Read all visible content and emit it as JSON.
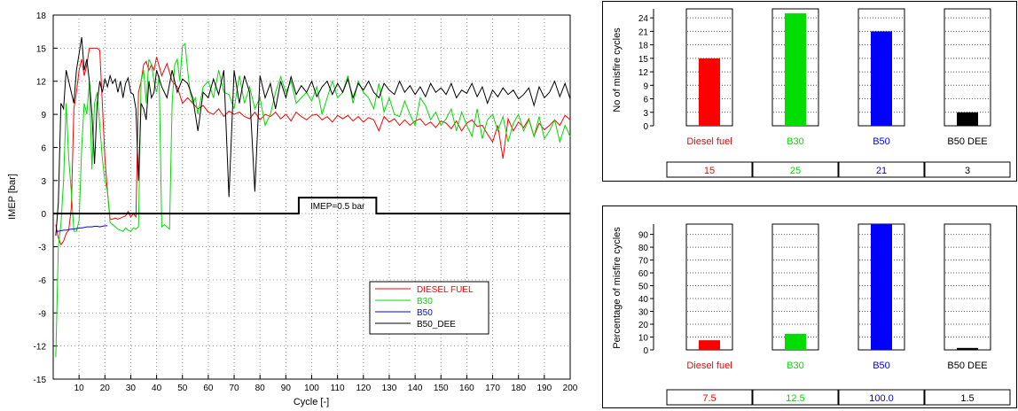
{
  "chart_data": [
    {
      "type": "line",
      "ylabel": "IMEP [bar]",
      "xlabel": "Cycle [-]",
      "xlim": [
        0,
        200
      ],
      "ylim": [
        -15,
        18
      ],
      "xticks": [
        10,
        20,
        30,
        40,
        50,
        60,
        70,
        80,
        90,
        100,
        110,
        120,
        130,
        140,
        150,
        160,
        170,
        180,
        190,
        200
      ],
      "yticks": [
        18,
        15,
        12,
        9,
        6,
        3,
        0,
        -3,
        -6,
        -9,
        -12,
        -15
      ],
      "grid": true,
      "legend_position": "bottom-right",
      "annotation": {
        "text": "IMEP=0.5 bar",
        "x_start": 95,
        "x_end": 125,
        "y": 0
      },
      "series": [
        {
          "name": "DIESEL FUEL",
          "color": "#ff0000",
          "x": [
            1,
            2,
            3,
            4,
            5,
            6,
            7,
            8,
            9,
            10,
            11,
            12,
            13,
            14,
            15,
            16,
            17,
            18,
            19,
            20,
            21,
            22,
            23,
            24,
            25,
            26,
            27,
            28,
            29,
            30,
            31,
            32,
            33,
            34,
            35,
            36,
            37,
            38,
            39,
            40,
            42,
            44,
            46,
            48,
            50,
            52,
            54,
            56,
            58,
            60,
            62,
            64,
            66,
            68,
            70,
            72,
            74,
            76,
            78,
            80,
            82,
            84,
            86,
            88,
            90,
            92,
            94,
            96,
            98,
            100,
            102,
            104,
            106,
            108,
            110,
            112,
            114,
            116,
            118,
            120,
            122,
            124,
            126,
            128,
            130,
            132,
            134,
            136,
            138,
            140,
            142,
            144,
            146,
            148,
            150,
            152,
            154,
            156,
            158,
            160,
            162,
            164,
            166,
            168,
            170,
            172,
            174,
            176,
            178,
            180,
            182,
            184,
            186,
            188,
            190,
            192,
            194,
            196,
            198,
            200
          ],
          "y": [
            -1,
            -2.2,
            -2.8,
            -2.5,
            -1.8,
            -1.5,
            0.5,
            9.5,
            11,
            13,
            14,
            12.5,
            13.5,
            15,
            15,
            15,
            15,
            14.8,
            10,
            5,
            2,
            -0.5,
            -0.5,
            -0.4,
            -0.5,
            -0.4,
            -0.3,
            -0.2,
            0.2,
            -0.3,
            0,
            -0.3,
            11,
            12,
            13.5,
            13.8,
            13,
            13.5,
            13,
            14.2,
            12.5,
            13.6,
            12,
            11.5,
            10,
            10.5,
            10,
            9.5,
            9.8,
            9.2,
            9,
            9.5,
            8.8,
            9.3,
            9,
            9.2,
            8.8,
            8.6,
            9.2,
            8.5,
            9,
            8.8,
            9.2,
            8.6,
            9,
            8.4,
            9.2,
            8.8,
            8.5,
            8.9,
            9,
            8.5,
            8.8,
            8.3,
            8.9,
            8.6,
            8.9,
            8.4,
            8.8,
            8.3,
            8.7,
            8.5,
            7.5,
            8.8,
            8.3,
            8.6,
            8,
            8.5,
            8,
            8.4,
            8.6,
            8,
            8.3,
            7.8,
            8.4,
            8.2,
            7.7,
            8.4,
            7.5,
            8.2,
            8.5,
            7.9,
            8,
            7.2,
            6.5,
            8,
            5,
            8.6,
            7.5,
            8.3,
            7.8,
            8.6,
            7,
            8.2,
            7.6,
            8,
            8.5,
            8,
            8.9,
            8.5
          ]
        },
        {
          "name": "B30",
          "color": "#00dd00",
          "x": [
            1,
            2,
            3,
            4,
            5,
            6,
            7,
            8,
            9,
            10,
            11,
            12,
            13,
            14,
            15,
            16,
            17,
            18,
            19,
            20,
            21,
            22,
            23,
            24,
            25,
            26,
            27,
            28,
            29,
            30,
            31,
            32,
            33,
            34,
            35,
            36,
            37,
            38,
            39,
            40,
            41,
            42,
            43,
            44,
            45,
            46,
            47,
            48,
            49,
            50,
            51,
            52,
            53,
            54,
            55,
            56,
            58,
            60,
            62,
            64,
            66,
            68,
            70,
            72,
            74,
            76,
            78,
            80,
            82,
            84,
            86,
            88,
            90,
            92,
            94,
            96,
            98,
            100,
            102,
            104,
            106,
            108,
            110,
            112,
            114,
            116,
            118,
            120,
            122,
            124,
            126,
            128,
            130,
            132,
            134,
            136,
            138,
            140,
            142,
            144,
            146,
            148,
            150,
            152,
            154,
            156,
            158,
            160,
            162,
            164,
            166,
            168,
            170,
            172,
            174,
            176,
            178,
            180,
            182,
            184,
            186,
            188,
            190,
            192,
            194,
            196,
            198,
            200
          ],
          "y": [
            -13,
            -3,
            -1,
            3,
            10,
            5,
            2,
            -1.6,
            -1.6,
            -0.6,
            6,
            10,
            9,
            12,
            4,
            10,
            11,
            8,
            5,
            3,
            2,
            -0.8,
            -1,
            -1.2,
            -1.4,
            -1.5,
            -1.6,
            -1.3,
            -1.5,
            -1.6,
            -1.3,
            -1.4,
            -1.2,
            12,
            13,
            10,
            14,
            13.5,
            12,
            11,
            12.5,
            -1.2,
            -1,
            -1.2,
            -1.4,
            10,
            13.5,
            14,
            12,
            15.2,
            15.4,
            13,
            11,
            10,
            10.5,
            9,
            11.5,
            12,
            10.5,
            13,
            11,
            10.8,
            9.5,
            12.5,
            10,
            11.5,
            9.5,
            10.5,
            8,
            9,
            11,
            12.4,
            11,
            12,
            10,
            10.5,
            11,
            10.2,
            11.5,
            9,
            10.5,
            12,
            10.5,
            11,
            12.5,
            10,
            12,
            11,
            10.5,
            9.5,
            11.8,
            9.2,
            10.5,
            9,
            8.8,
            10.2,
            9,
            8,
            10.5,
            9.8,
            8.5,
            9.2,
            8,
            8.6,
            9.5,
            7.5,
            9.2,
            8,
            7,
            9.5,
            6.8,
            8.5,
            9,
            7.5,
            8.8,
            6.5,
            8.2,
            9,
            7.5,
            8.5,
            7,
            8.8,
            6.8,
            7.5,
            8.5,
            6.5,
            8,
            7
          ]
        },
        {
          "name": "B50",
          "color": "#0000ff",
          "x": [
            1,
            2,
            3,
            4,
            5,
            6,
            7,
            8,
            9,
            10,
            11,
            12,
            13,
            14,
            15,
            16,
            17,
            18,
            19,
            20,
            21
          ],
          "y": [
            -1.6,
            -1.6,
            -1.55,
            -1.5,
            -1.5,
            -1.45,
            -1.4,
            -1.4,
            -1.35,
            -1.3,
            -1.3,
            -1.25,
            -1.2,
            -1.2,
            -1.2,
            -1.15,
            -1.15,
            -1.2,
            -1.15,
            -1.1,
            -1.1
          ]
        },
        {
          "name": "B50_DEE",
          "color": "#000000",
          "x": [
            1,
            2,
            3,
            4,
            5,
            6,
            7,
            8,
            9,
            10,
            11,
            12,
            13,
            14,
            15,
            16,
            17,
            18,
            19,
            20,
            21,
            22,
            23,
            24,
            25,
            26,
            27,
            28,
            29,
            30,
            31,
            32,
            33,
            34,
            35,
            36,
            37,
            38,
            39,
            40,
            42,
            44,
            46,
            48,
            50,
            52,
            54,
            56,
            58,
            60,
            62,
            64,
            66,
            68,
            70,
            72,
            74,
            76,
            78,
            80,
            82,
            84,
            86,
            88,
            90,
            92,
            94,
            96,
            98,
            100,
            102,
            104,
            106,
            108,
            110,
            112,
            114,
            116,
            118,
            120,
            122,
            124,
            126,
            128,
            130,
            132,
            134,
            136,
            138,
            140,
            142,
            144,
            146,
            148,
            150,
            152,
            154,
            156,
            158,
            160,
            162,
            164,
            166,
            168,
            170,
            172,
            174,
            176,
            178,
            180,
            182,
            184,
            186,
            188,
            190,
            192,
            194,
            196,
            198,
            200
          ],
          "y": [
            -2,
            1,
            10,
            9.5,
            13,
            12,
            11,
            10,
            13,
            14.5,
            16,
            13,
            14,
            12,
            9,
            4.5,
            10,
            12,
            11,
            12.2,
            11.5,
            12.5,
            11.8,
            12.2,
            11,
            12,
            10.5,
            11.8,
            12.3,
            11,
            10.8,
            9.5,
            3,
            10,
            9.5,
            8.5,
            12,
            10.5,
            11,
            13,
            11.5,
            10.5,
            13,
            11,
            12.2,
            11.8,
            10.5,
            7.5,
            11,
            10.5,
            12.2,
            10.8,
            13,
            1.5,
            13,
            10,
            12.5,
            11,
            2,
            12.5,
            10.5,
            11.8,
            9.5,
            12,
            10.5,
            12.4,
            10.8,
            11.6,
            11,
            12,
            10.6,
            11.5,
            12,
            10.8,
            11.8,
            11,
            12.2,
            10.5,
            11.8,
            11.2,
            12,
            11,
            10.5,
            11.8,
            11.2,
            10.8,
            12,
            11,
            11.6,
            10.8,
            11.5,
            10.6,
            11.8,
            11,
            11.4,
            10.8,
            11.8,
            10.5,
            11.2,
            10.9,
            11.8,
            10.6,
            11.5,
            10,
            11.2,
            10.6,
            11.4,
            10.8,
            11.2,
            10.4,
            10.8,
            11.4,
            9.8,
            11.5,
            10.5,
            11,
            12,
            10.6,
            11.8,
            10.4
          ]
        }
      ]
    },
    {
      "type": "bar",
      "ylabel": "No of misfire cycles",
      "ylim": [
        0,
        26
      ],
      "yticks": [
        0,
        3,
        6,
        9,
        12,
        15,
        18,
        21,
        24
      ],
      "grid": true,
      "categories": [
        "Diesel fuel",
        "B30",
        "B50",
        "B50 DEE"
      ],
      "category_colors": [
        "#ff0000",
        "#00dd00",
        "#0000ff",
        "#000000"
      ],
      "values": [
        15,
        25,
        21,
        3
      ],
      "value_labels": [
        "15",
        "25",
        "21",
        "3"
      ]
    },
    {
      "type": "bar",
      "ylabel": "Percentage of misfire cycles",
      "ylim": [
        0,
        98
      ],
      "yticks": [
        0,
        10,
        20,
        30,
        40,
        50,
        60,
        70,
        80,
        90
      ],
      "grid": true,
      "categories": [
        "Diesel fuel",
        "B30",
        "B50",
        "B50 DEE"
      ],
      "category_colors": [
        "#ff0000",
        "#00dd00",
        "#0000ff",
        "#000000"
      ],
      "values": [
        7.5,
        12.5,
        100.0,
        1.5
      ],
      "value_labels": [
        "7.5",
        "12.5",
        "100.0",
        "1.5"
      ]
    }
  ]
}
